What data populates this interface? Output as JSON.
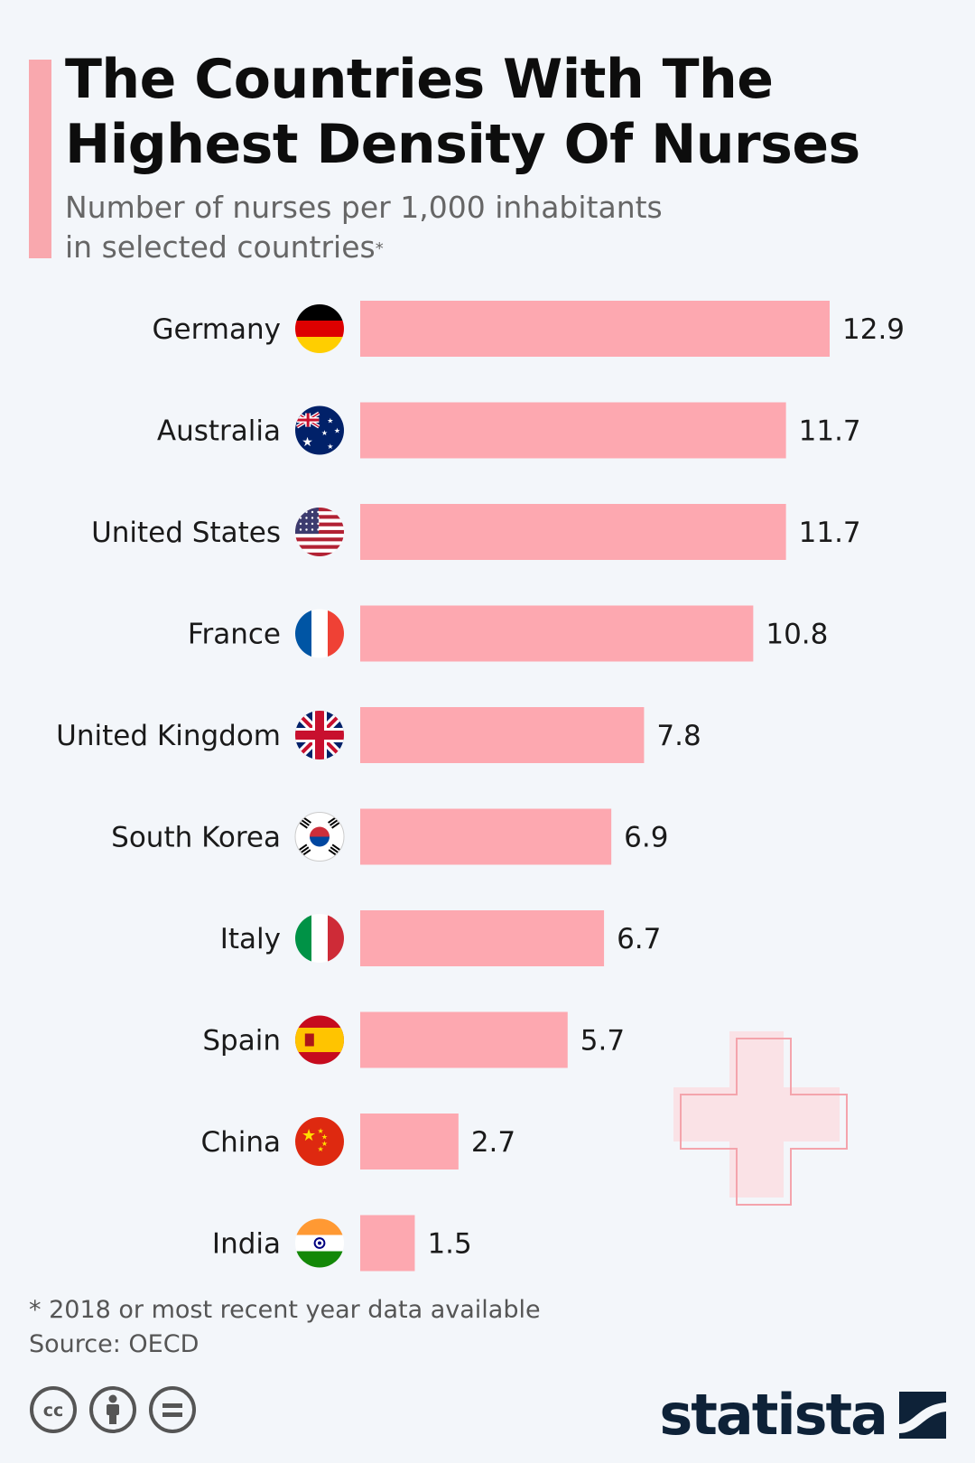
{
  "title": "The Countries With The Highest Density Of Nurses",
  "subtitle_line1": "Number of nurses per 1,000 inhabitants",
  "subtitle_line2": "in selected countries",
  "subtitle_mark": "*",
  "footnote": "* 2018 or most recent year data available",
  "source": "Source: OECD",
  "logo": "statista",
  "colors": {
    "bar": "#fda8b0",
    "accent": "#f9a8ae",
    "background": "#f3f6fa",
    "brand": "#0e2238"
  },
  "chart_data": {
    "type": "bar",
    "orientation": "horizontal",
    "title": "The Countries With The Highest Density Of Nurses",
    "ylabel": "Number of nurses per 1,000 inhabitants in selected countries",
    "categories": [
      "Germany",
      "Australia",
      "United States",
      "France",
      "United Kingdom",
      "South Korea",
      "Italy",
      "Spain",
      "China",
      "India"
    ],
    "values": [
      12.9,
      11.7,
      11.7,
      10.8,
      7.8,
      6.9,
      6.7,
      5.7,
      2.7,
      1.5
    ],
    "value_labels": [
      "12.9",
      "11.7",
      "11.7",
      "10.8",
      "7.8",
      "6.9",
      "6.7",
      "5.7",
      "2.7",
      "1.5"
    ],
    "xlim": [
      0,
      12.9
    ],
    "grid": false,
    "flags": [
      "germany-flag-icon",
      "australia-flag-icon",
      "united-states-flag-icon",
      "france-flag-icon",
      "united-kingdom-flag-icon",
      "south-korea-flag-icon",
      "italy-flag-icon",
      "spain-flag-icon",
      "china-flag-icon",
      "india-flag-icon"
    ]
  },
  "license_icons": [
    "cc-icon",
    "attribution-icon",
    "no-derivatives-icon"
  ]
}
